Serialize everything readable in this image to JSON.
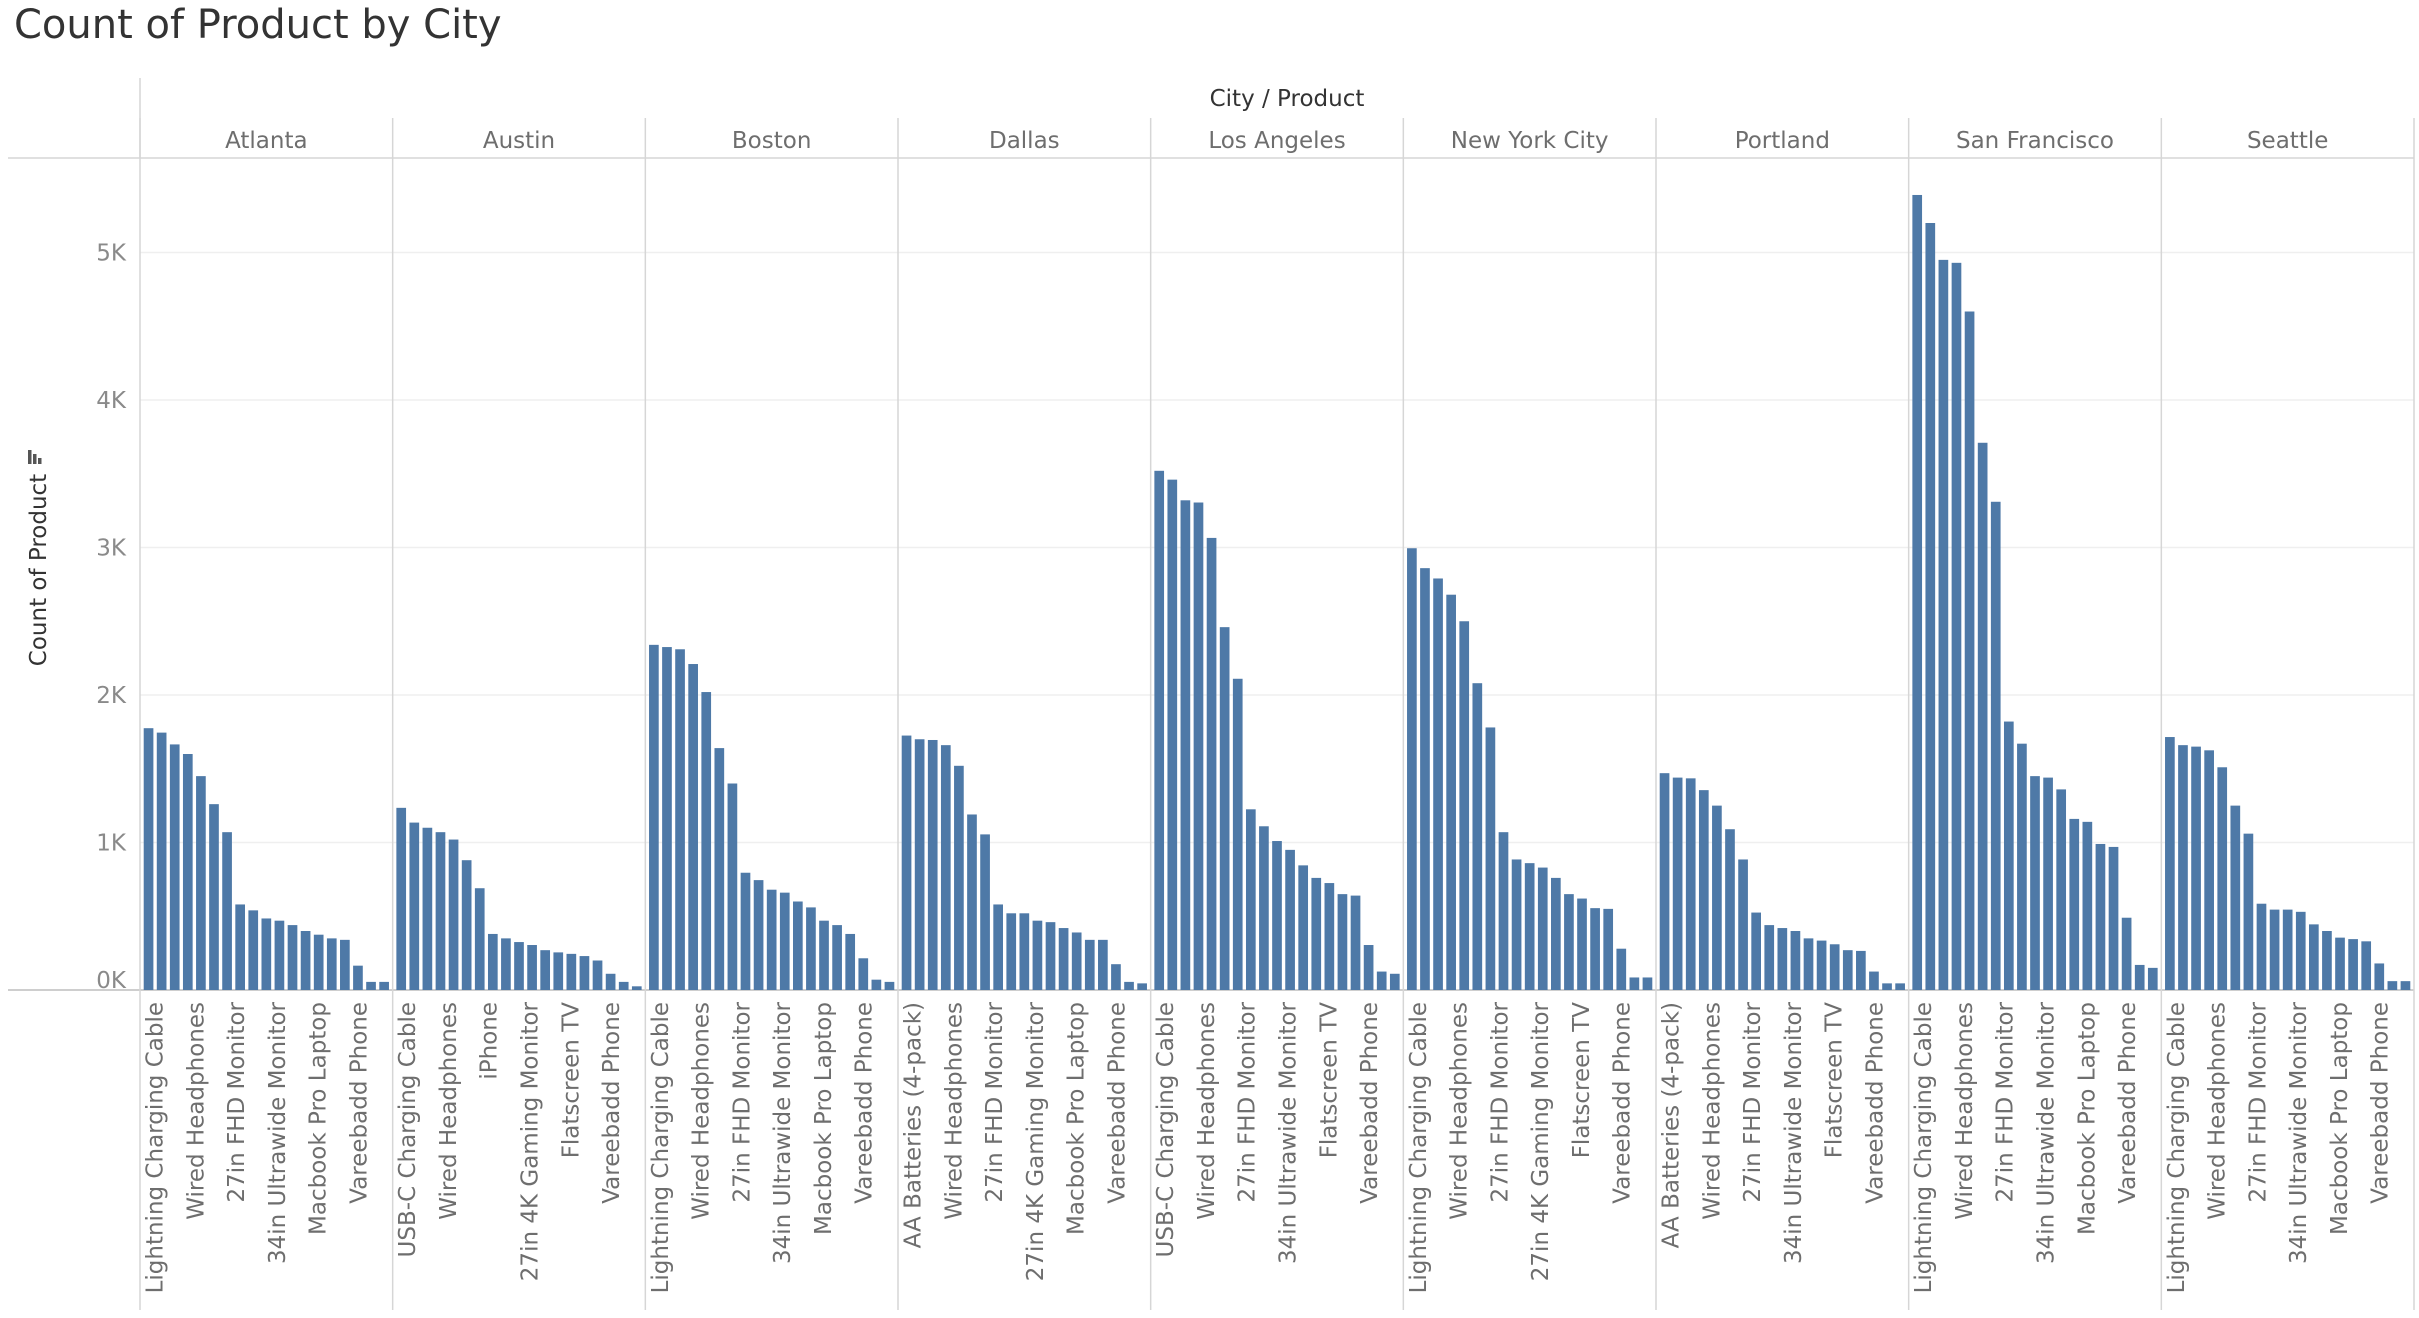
{
  "title": "Count of Product by City",
  "chart_data": {
    "type": "bar",
    "title": "Count of Product by City",
    "column_header": "City / Product",
    "ylabel": "Count of Product",
    "ylim": [
      0,
      5500
    ],
    "y_ticks": [
      0,
      1000,
      2000,
      3000,
      4000,
      5000
    ],
    "y_tick_labels": [
      "0K",
      "1K",
      "2K",
      "3K",
      "4K",
      "5K"
    ],
    "grid": true,
    "bar_color": "#4e79a7",
    "panels": [
      {
        "city": "Atlanta",
        "labels": [
          "Lightning Charging Cable",
          "Wired Headphones",
          "27in FHD Monitor",
          "34in Ultrawide Monitor",
          "Macbook Pro Laptop",
          "Vareebadd Phone"
        ],
        "values": [
          1775,
          1745,
          1665,
          1600,
          1450,
          1260,
          1070,
          580,
          540,
          485,
          470,
          440,
          400,
          375,
          350,
          340,
          165,
          55,
          55
        ]
      },
      {
        "city": "Austin",
        "labels": [
          "USB-C Charging Cable",
          "Wired Headphones",
          "iPhone",
          "27in 4K Gaming Monitor",
          "Flatscreen TV",
          "Vareebadd Phone"
        ],
        "values": [
          1235,
          1135,
          1100,
          1070,
          1020,
          880,
          690,
          380,
          350,
          325,
          305,
          270,
          255,
          245,
          230,
          200,
          110,
          55,
          25
        ]
      },
      {
        "city": "Boston",
        "labels": [
          "Lightning Charging Cable",
          "Wired Headphones",
          "27in FHD Monitor",
          "34in Ultrawide Monitor",
          "Macbook Pro Laptop",
          "Vareebadd Phone"
        ],
        "values": [
          2340,
          2325,
          2310,
          2210,
          2020,
          1640,
          1400,
          795,
          745,
          680,
          660,
          600,
          560,
          470,
          440,
          380,
          215,
          70,
          55
        ]
      },
      {
        "city": "Dallas",
        "labels": [
          "AA Batteries (4-pack)",
          "Wired Headphones",
          "27in FHD Monitor",
          "27in 4K Gaming Monitor",
          "Macbook Pro Laptop",
          "Vareebadd Phone"
        ],
        "values": [
          1725,
          1700,
          1695,
          1660,
          1520,
          1190,
          1055,
          580,
          520,
          520,
          470,
          460,
          420,
          390,
          340,
          340,
          175,
          55,
          45
        ]
      },
      {
        "city": "Los Angeles",
        "labels": [
          "USB-C Charging Cable",
          "Wired Headphones",
          "27in FHD Monitor",
          "34in Ultrawide Monitor",
          "Flatscreen TV",
          "Vareebadd Phone"
        ],
        "values": [
          3520,
          3460,
          3320,
          3305,
          3065,
          2460,
          2110,
          1225,
          1110,
          1010,
          950,
          845,
          760,
          725,
          650,
          640,
          305,
          125,
          110
        ]
      },
      {
        "city": "New York City",
        "labels": [
          "Lightning Charging Cable",
          "Wired Headphones",
          "27in FHD Monitor",
          "27in 4K Gaming Monitor",
          "Flatscreen TV",
          "Vareebadd Phone"
        ],
        "values": [
          2995,
          2860,
          2790,
          2680,
          2500,
          2080,
          1780,
          1070,
          885,
          860,
          830,
          760,
          650,
          620,
          555,
          550,
          280,
          85,
          85
        ]
      },
      {
        "city": "Portland",
        "labels": [
          "AA Batteries (4-pack)",
          "Wired Headphones",
          "27in FHD Monitor",
          "34in Ultrawide Monitor",
          "Flatscreen TV",
          "Vareebadd Phone"
        ],
        "values": [
          1470,
          1440,
          1435,
          1355,
          1250,
          1090,
          885,
          525,
          440,
          420,
          400,
          350,
          335,
          310,
          270,
          265,
          125,
          45,
          45
        ]
      },
      {
        "city": "San Francisco",
        "labels": [
          "Lightning Charging Cable",
          "Wired Headphones",
          "27in FHD Monitor",
          "34in Ultrawide Monitor",
          "Macbook Pro Laptop",
          "Vareebadd Phone"
        ],
        "values": [
          5390,
          5200,
          4950,
          4930,
          4600,
          3710,
          3310,
          1820,
          1670,
          1450,
          1440,
          1360,
          1160,
          1140,
          990,
          970,
          490,
          170,
          150
        ]
      },
      {
        "city": "Seattle",
        "labels": [
          "Lightning Charging Cable",
          "Wired Headphones",
          "27in FHD Monitor",
          "34in Ultrawide Monitor",
          "Macbook Pro Laptop",
          "Vareebadd Phone"
        ],
        "values": [
          1715,
          1660,
          1650,
          1625,
          1510,
          1250,
          1060,
          585,
          545,
          545,
          530,
          445,
          400,
          355,
          345,
          330,
          180,
          60,
          60
        ]
      }
    ]
  }
}
